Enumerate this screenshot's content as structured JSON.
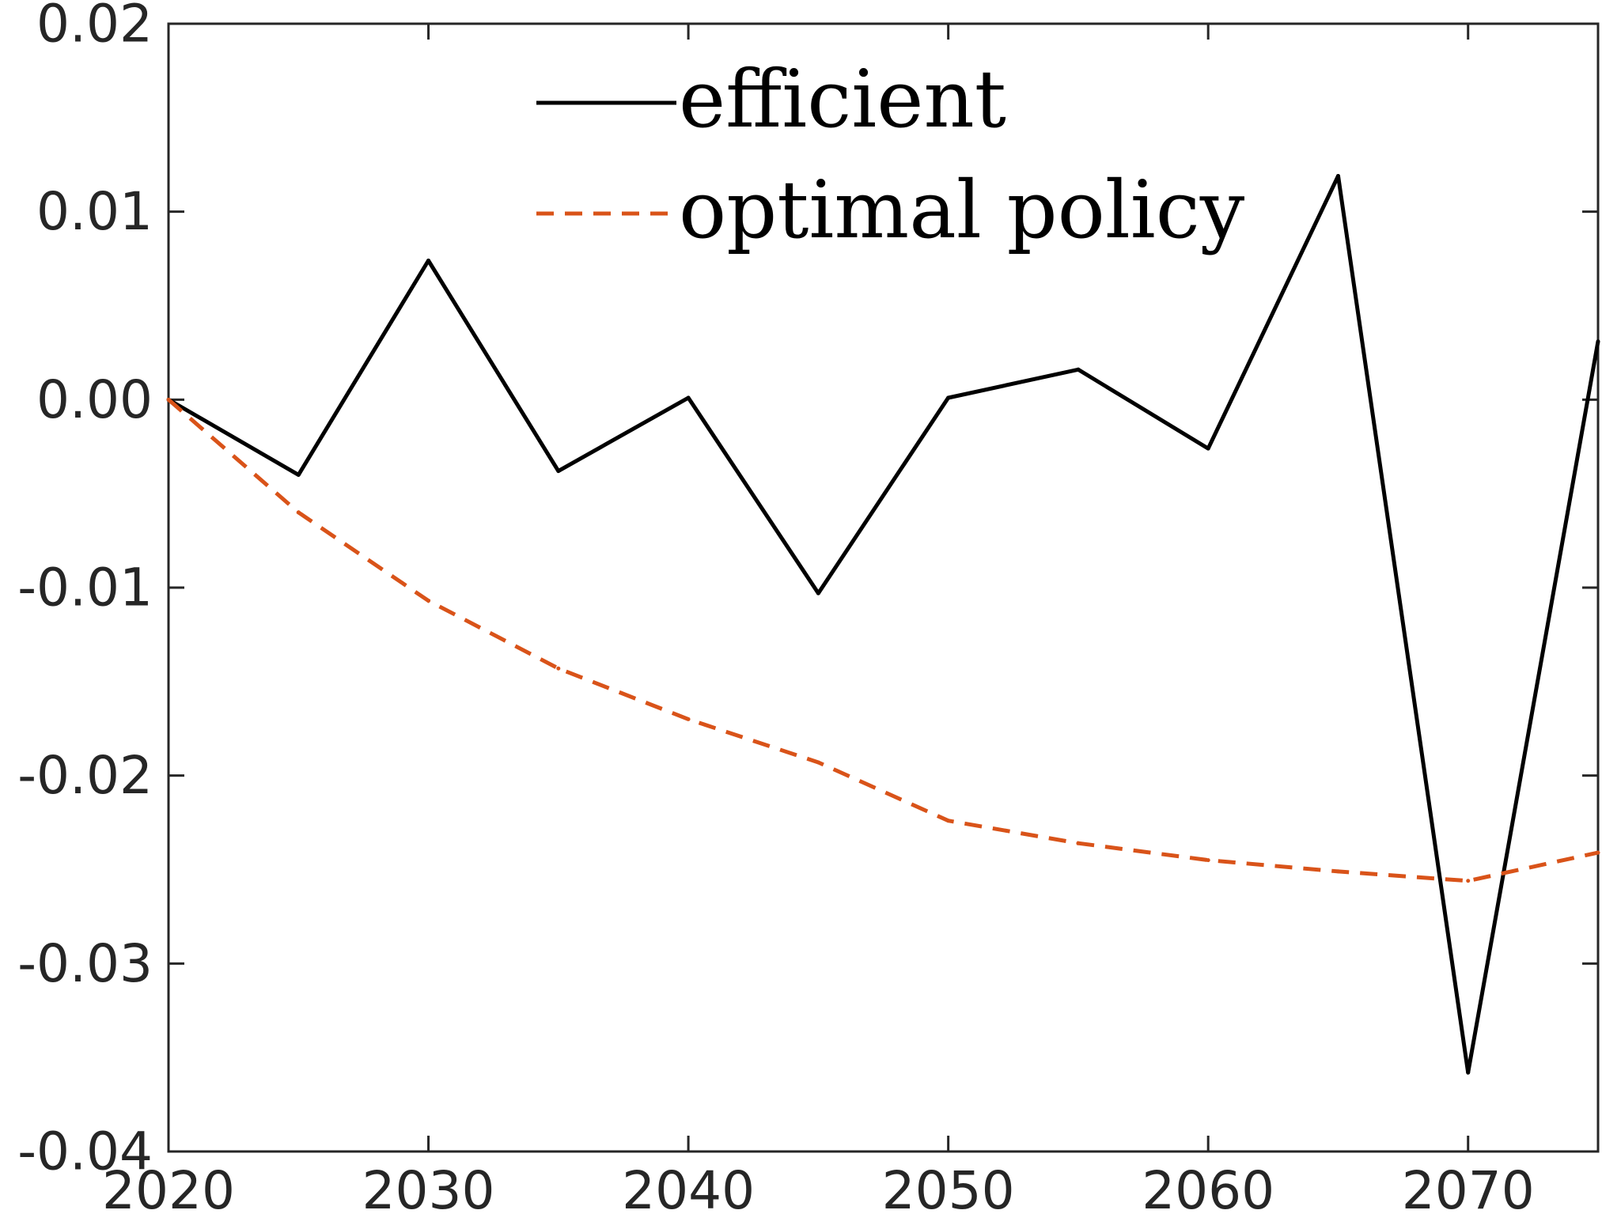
{
  "chart_data": {
    "type": "line",
    "title": "",
    "xlabel": "",
    "ylabel": "",
    "xlim": [
      2020,
      2075
    ],
    "ylim": [
      -0.04,
      0.02
    ],
    "x_ticks": [
      2020,
      2030,
      2040,
      2050,
      2060,
      2070
    ],
    "x_tick_labels": [
      "2020",
      "2030",
      "2040",
      "2050",
      "2060",
      "2070"
    ],
    "y_ticks": [
      0.02,
      0.01,
      0.0,
      -0.01,
      -0.02,
      -0.03,
      -0.04
    ],
    "y_tick_labels": [
      "0.02",
      "0.01",
      "0.00",
      "-0.01",
      "-0.02",
      "-0.03",
      "-0.04"
    ],
    "grid": false,
    "legend_position": "top-center",
    "series": [
      {
        "name": "efficient",
        "color": "#000000",
        "line_style": "solid",
        "x": [
          2020,
          2025,
          2030,
          2035,
          2040,
          2045,
          2050,
          2055,
          2060,
          2065,
          2070,
          2075
        ],
        "y": [
          0.0,
          -0.004,
          0.0074,
          -0.0038,
          0.0001,
          -0.0103,
          0.0001,
          0.0016,
          -0.0026,
          0.0119,
          -0.0358,
          0.0031
        ]
      },
      {
        "name": "optimal policy",
        "color": "#D95319",
        "line_style": "dashed",
        "x": [
          2020,
          2025,
          2030,
          2035,
          2040,
          2045,
          2050,
          2055,
          2060,
          2065,
          2070,
          2075
        ],
        "y": [
          0.0,
          -0.006,
          -0.0107,
          -0.0143,
          -0.017,
          -0.0193,
          -0.0224,
          -0.0236,
          -0.0245,
          -0.0251,
          -0.0256,
          -0.0241
        ]
      }
    ]
  }
}
